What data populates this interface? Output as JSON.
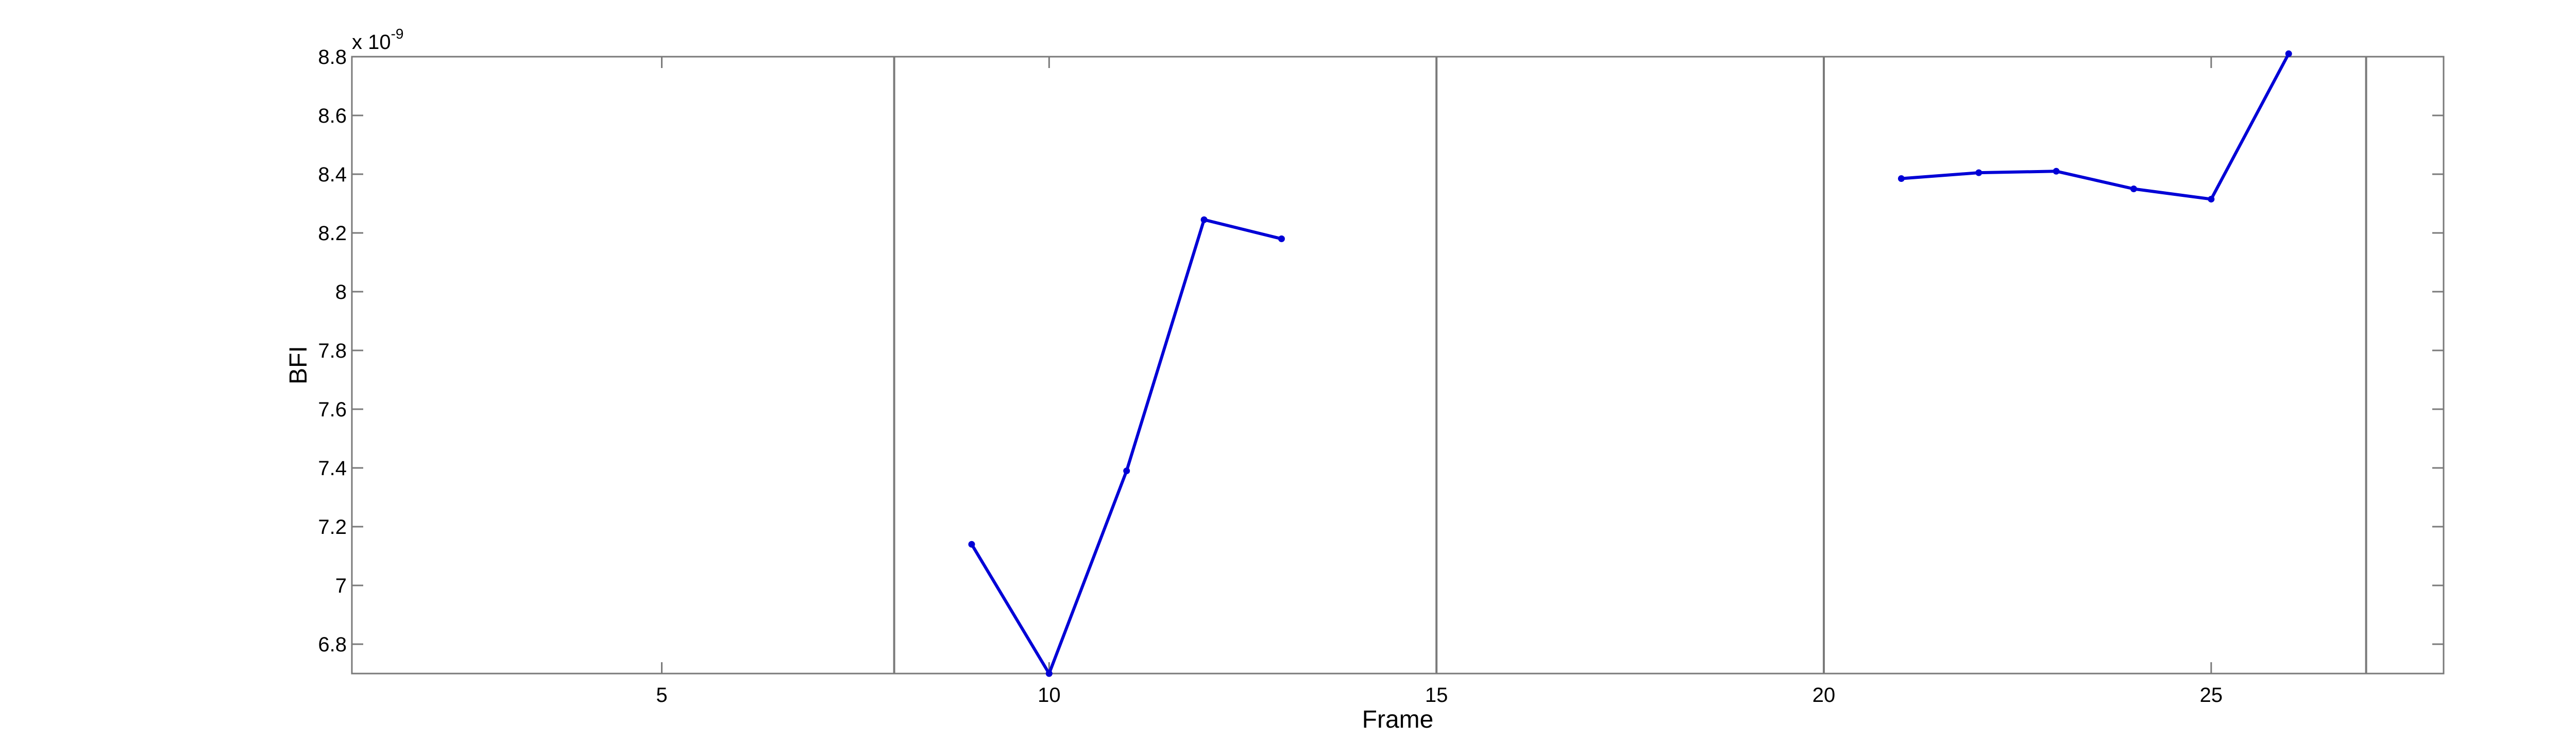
{
  "chart_data": {
    "type": "line",
    "xlabel": "Frame",
    "ylabel": "BFI",
    "exponent_base": "x 10",
    "exponent_power": "-9",
    "xlim": [
      1,
      28
    ],
    "ylim": [
      6.7,
      8.8
    ],
    "x_ticks": [
      5,
      10,
      15,
      20,
      25
    ],
    "x_tick_labels": [
      "5",
      "10",
      "15",
      "20",
      "25"
    ],
    "y_ticks": [
      6.8,
      7.0,
      7.2,
      7.4,
      7.6,
      7.8,
      8.0,
      8.2,
      8.4,
      8.6,
      8.8
    ],
    "y_tick_labels": [
      "6.8",
      "7",
      "7.2",
      "7.4",
      "7.6",
      "7.8",
      "8",
      "8.2",
      "8.4",
      "8.6",
      "8.8"
    ],
    "vertical_markers": [
      8,
      15,
      20,
      27
    ],
    "grid": false,
    "series": [
      {
        "color": "#0000d6",
        "marker": "dot",
        "points": [
          [
            9,
            7.14
          ],
          [
            10,
            6.7
          ],
          [
            11,
            7.39
          ],
          [
            12,
            8.245
          ],
          [
            13,
            8.18
          ],
          [
            21,
            8.385
          ],
          [
            22,
            8.405
          ],
          [
            23,
            8.41
          ],
          [
            24,
            8.35
          ],
          [
            25,
            8.315
          ],
          [
            26,
            8.81
          ]
        ]
      }
    ]
  }
}
